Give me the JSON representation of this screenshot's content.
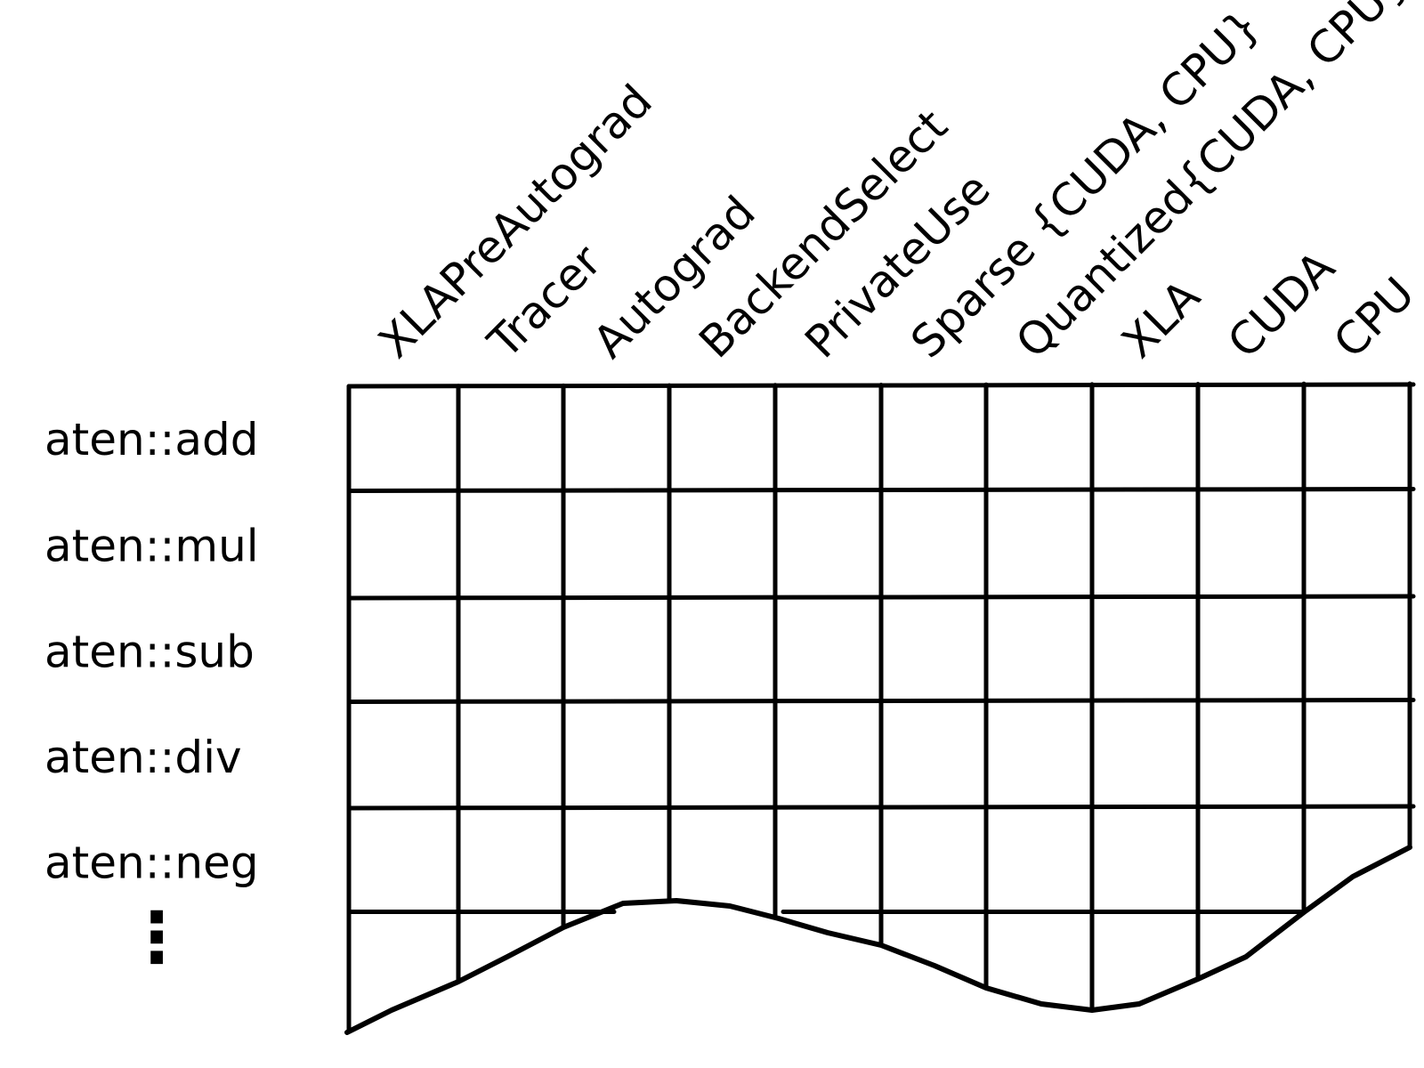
{
  "diagram": {
    "columns": [
      "XLAPreAutograd",
      "Tracer",
      "Autograd",
      "BackendSelect",
      "PrivateUse",
      "Sparse {CUDA, CPU}",
      "Quantized{CUDA, CPU}",
      "XLA",
      "CUDA",
      "CPU"
    ],
    "rows": [
      "aten::add",
      "aten::mul",
      "aten::sub",
      "aten::div",
      "aten::neg"
    ],
    "continuation": "⋮",
    "ink_color": "#000000",
    "background": "#ffffff"
  }
}
